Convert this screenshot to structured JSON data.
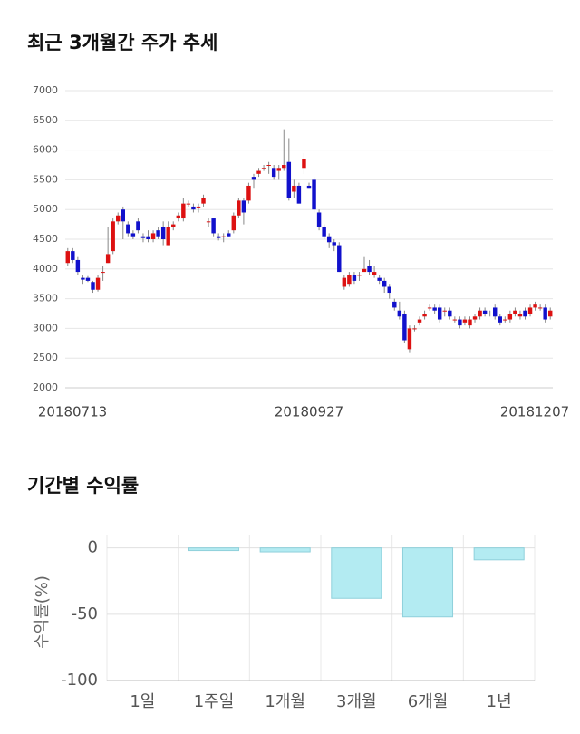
{
  "chart_data": [
    {
      "type": "candlestick",
      "title": "최근 3개월간 주가 추세",
      "categories": [
        "20180713",
        null,
        null,
        null,
        null,
        null,
        null,
        null,
        null,
        null,
        null,
        null,
        null,
        null,
        null,
        null,
        null,
        null,
        null,
        null,
        null,
        null,
        null,
        null,
        null,
        null,
        null,
        null,
        null,
        null,
        null,
        null,
        null,
        null,
        null,
        null,
        null,
        null,
        null,
        null,
        null,
        null,
        null,
        null,
        null,
        null,
        null,
        null,
        "20180927",
        null,
        null,
        null,
        null,
        null,
        null,
        null,
        null,
        null,
        null,
        null,
        null,
        null,
        null,
        null,
        null,
        null,
        null,
        null,
        null,
        null,
        null,
        null,
        null,
        null,
        null,
        null,
        null,
        null,
        null,
        null,
        null,
        null,
        null,
        null,
        null,
        null,
        null,
        null,
        null,
        null,
        null,
        null,
        null,
        null,
        null,
        null,
        "20181207"
      ],
      "open": [
        4100,
        4300,
        4150,
        3850,
        3850,
        3780,
        3650,
        3950,
        4100,
        4300,
        4800,
        5000,
        4750,
        4600,
        4800,
        4550,
        4550,
        4500,
        4650,
        4700,
        4400,
        4700,
        4850,
        4850,
        5100,
        5050,
        5050,
        5100,
        4800,
        4850,
        4550,
        4550,
        4600,
        4650,
        4900,
        5150,
        5150,
        5550,
        5600,
        5700,
        5750,
        5700,
        5650,
        5700,
        5800,
        5300,
        5400,
        5700,
        5400,
        5500,
        4950,
        4700,
        4550,
        4450,
        4400,
        3700,
        3750,
        3900,
        3900,
        3950,
        4050,
        3900,
        3850,
        3800,
        3700,
        3450,
        3300,
        3250,
        2650,
        3000,
        3100,
        3200,
        3350,
        3350,
        3350,
        3300,
        3300,
        3150,
        3150,
        3100,
        3050,
        3150,
        3200,
        3300,
        3250,
        3350,
        3200,
        3150,
        3150,
        3250,
        3200,
        3300,
        3250,
        3350,
        3350,
        3350,
        3200
      ],
      "high": [
        4350,
        4350,
        4200,
        3900,
        3880,
        3800,
        3900,
        4050,
        4700,
        4850,
        4950,
        5050,
        4800,
        4650,
        4850,
        4600,
        4650,
        4650,
        4700,
        4800,
        4800,
        4800,
        4950,
        5200,
        5150,
        5100,
        5100,
        5250,
        4850,
        4850,
        4600,
        4600,
        4650,
        4950,
        5200,
        5200,
        5450,
        5600,
        5700,
        5750,
        5800,
        5750,
        5750,
        6350,
        6200,
        5500,
        5450,
        5950,
        5450,
        5550,
        5000,
        4750,
        4600,
        4500,
        4450,
        3900,
        3950,
        3950,
        3950,
        4200,
        4150,
        4050,
        3900,
        3850,
        3750,
        3500,
        3450,
        3300,
        3050,
        3050,
        3200,
        3300,
        3400,
        3400,
        3400,
        3350,
        3350,
        3200,
        3200,
        3200,
        3200,
        3250,
        3350,
        3350,
        3300,
        3400,
        3250,
        3200,
        3300,
        3350,
        3300,
        3350,
        3400,
        3450,
        3400,
        3400,
        3350
      ],
      "low": [
        4050,
        4100,
        3900,
        3750,
        3780,
        3600,
        3620,
        3800,
        4100,
        4250,
        4750,
        4500,
        4550,
        4500,
        4600,
        4450,
        4450,
        4450,
        4500,
        4400,
        4400,
        4650,
        4800,
        4800,
        5050,
        4950,
        4950,
        5050,
        4700,
        4550,
        4480,
        4450,
        4550,
        4600,
        4850,
        4750,
        5100,
        5350,
        5550,
        5650,
        5600,
        5500,
        5500,
        5650,
        5150,
        5200,
        5100,
        5600,
        5350,
        4950,
        4650,
        4500,
        4350,
        4300,
        3950,
        3650,
        3700,
        3750,
        3800,
        3950,
        3900,
        3850,
        3750,
        3600,
        3500,
        3300,
        3150,
        2750,
        2600,
        2950,
        3050,
        3150,
        3300,
        3250,
        3100,
        3200,
        3150,
        3100,
        3000,
        3050,
        3000,
        3100,
        3150,
        3200,
        3200,
        3150,
        3050,
        3100,
        3100,
        3200,
        3150,
        3150,
        3200,
        3300,
        3300,
        3100,
        3150
      ],
      "close": [
        4300,
        4150,
        3950,
        3820,
        3800,
        3650,
        3850,
        3950,
        4250,
        4800,
        4900,
        4800,
        4600,
        4550,
        4650,
        4520,
        4500,
        4600,
        4550,
        4500,
        4700,
        4750,
        4900,
        5100,
        5100,
        5000,
        5050,
        5200,
        4800,
        4600,
        4520,
        4550,
        4550,
        4900,
        5150,
        4950,
        5400,
        5500,
        5650,
        5700,
        5750,
        5550,
        5700,
        5750,
        5200,
        5400,
        5100,
        5850,
        5350,
        5000,
        4700,
        4550,
        4450,
        4400,
        3950,
        3850,
        3900,
        3800,
        3900,
        4000,
        3950,
        3950,
        3800,
        3700,
        3600,
        3350,
        3200,
        2800,
        3000,
        3000,
        3150,
        3250,
        3350,
        3300,
        3150,
        3300,
        3200,
        3150,
        3050,
        3150,
        3150,
        3200,
        3300,
        3250,
        3250,
        3200,
        3100,
        3150,
        3250,
        3300,
        3250,
        3200,
        3350,
        3400,
        3350,
        3150,
        3300
      ],
      "up_color": "#dd1111",
      "down_color": "#1111cc",
      "ylim": [
        2000,
        7000
      ],
      "yticks": [
        2000,
        2500,
        3000,
        3500,
        4000,
        4500,
        5000,
        5500,
        6000,
        6500,
        7000
      ],
      "grid": true
    },
    {
      "type": "bar",
      "title": "기간별 수익률",
      "ylabel": "수익률(%)",
      "categories": [
        "1일",
        "1주일",
        "1개월",
        "3개월",
        "6개월",
        "1년"
      ],
      "values": [
        0,
        -2,
        -3,
        -38,
        -52,
        -9
      ],
      "color": "#b3ebf2",
      "ylim": [
        -100,
        10
      ],
      "yticks": [
        -100,
        -50,
        0
      ],
      "grid": true
    }
  ]
}
